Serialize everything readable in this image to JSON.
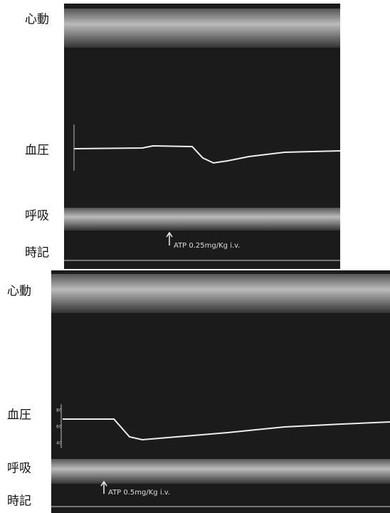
{
  "panels": [
    {
      "labels": {
        "heart": "心動",
        "bp": "血圧",
        "resp": "呼吸",
        "time": "時記"
      },
      "annotation": "ATP 0.25mg/Kg i.v."
    },
    {
      "labels": {
        "heart": "心動",
        "bp": "血圧",
        "resp": "呼吸",
        "time": "時記"
      },
      "annotation": "ATP 0.5mg/Kg i.v.",
      "bp_ticks": [
        "80",
        "60",
        "40"
      ]
    }
  ]
}
